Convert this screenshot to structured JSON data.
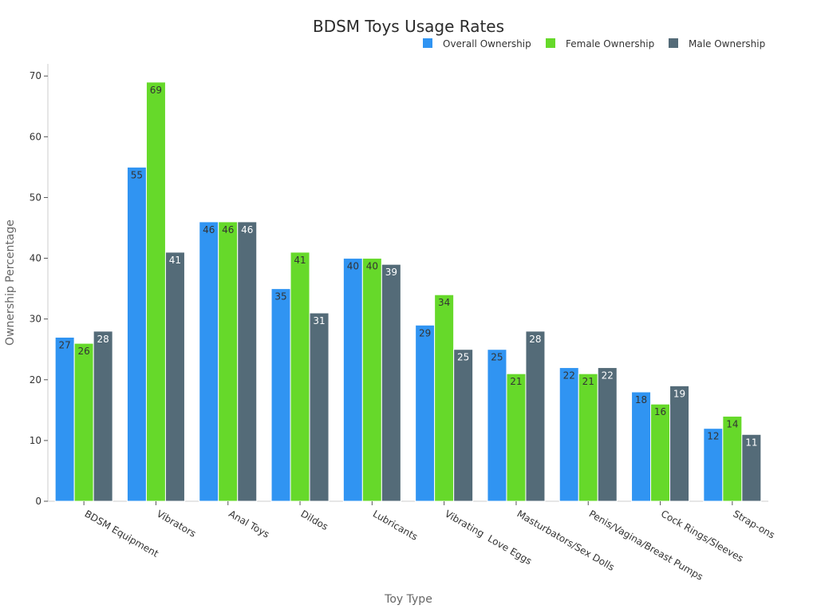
{
  "chart_data": {
    "type": "bar",
    "title": "BDSM Toys Usage Rates",
    "xlabel": "Toy Type",
    "ylabel": "Ownership Percentage",
    "ylim": [
      0,
      72
    ],
    "yticks": [
      0,
      10,
      20,
      30,
      40,
      50,
      60,
      70
    ],
    "grid": false,
    "legend_position": "top-right",
    "categories": [
      "BDSM Equipment",
      "Vibrators",
      "Anal Toys",
      "Dildos",
      "Lubricants",
      "Vibrating  Love Eggs",
      "Masturbators/Sex Dolls",
      "Penis/Vagina/Breast Pumps",
      "Cock Rings/Sleeves",
      "Strap-ons"
    ],
    "series": [
      {
        "name": "Overall Ownership",
        "color": "#3094f2",
        "label_color": "#333333",
        "values": [
          27,
          55,
          46,
          35,
          40,
          29,
          25,
          22,
          18,
          12
        ]
      },
      {
        "name": "Female Ownership",
        "color": "#66d92a",
        "label_color": "#333333",
        "values": [
          26,
          69,
          46,
          41,
          40,
          34,
          21,
          21,
          16,
          14
        ]
      },
      {
        "name": "Male Ownership",
        "color": "#546b78",
        "label_color": "#ffffff",
        "values": [
          28,
          41,
          46,
          31,
          39,
          25,
          28,
          22,
          19,
          11
        ]
      }
    ]
  }
}
